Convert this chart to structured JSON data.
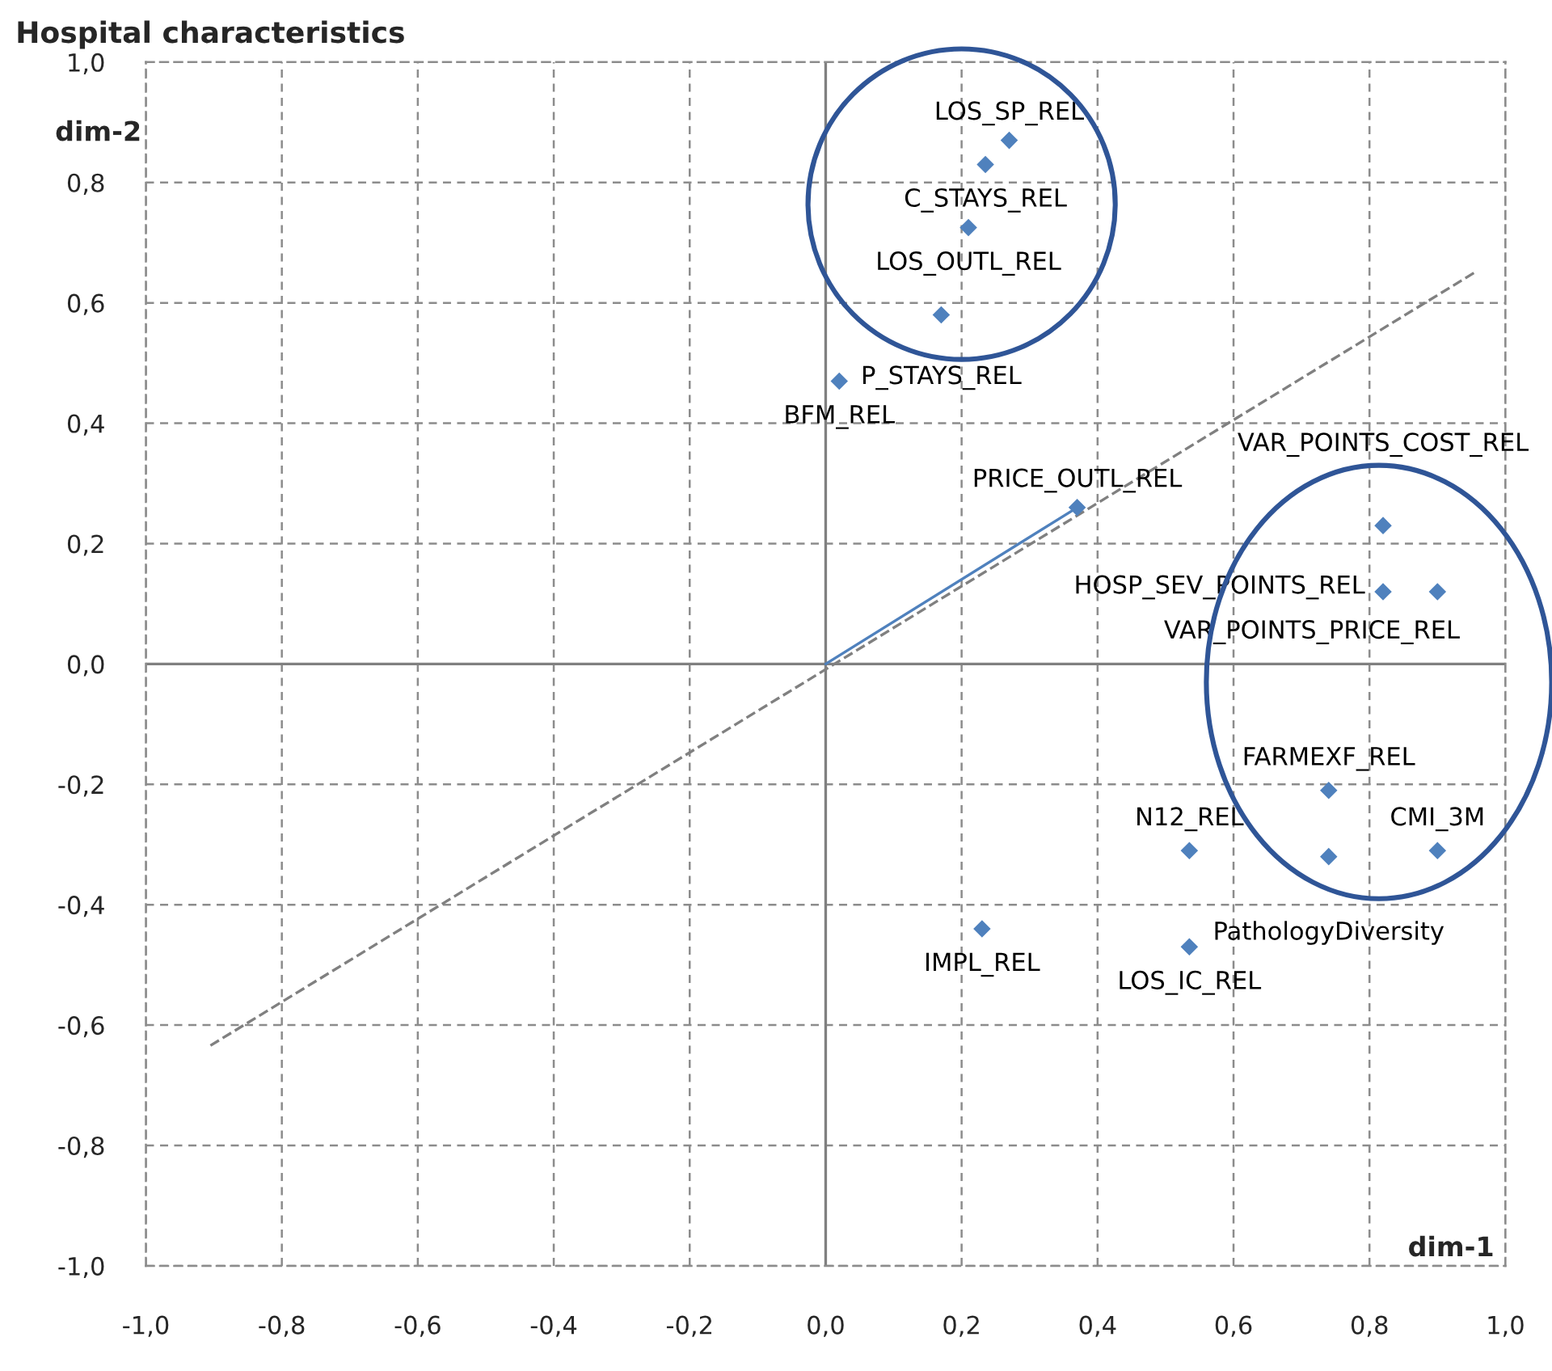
{
  "chart_data": {
    "type": "scatter",
    "title": "Hospital characteristics",
    "xlabel": "dim-1",
    "ylabel": "dim-2",
    "xlim": [
      -1,
      1
    ],
    "ylim": [
      -1,
      1
    ],
    "xticks": [
      {
        "value": -1,
        "label": "-1,0"
      },
      {
        "value": -0.8,
        "label": "-0,8"
      },
      {
        "value": -0.6,
        "label": "-0,6"
      },
      {
        "value": -0.4,
        "label": "-0,4"
      },
      {
        "value": -0.2,
        "label": "-0,2"
      },
      {
        "value": 0,
        "label": "0,0"
      },
      {
        "value": 0.2,
        "label": "0,2"
      },
      {
        "value": 0.4,
        "label": "0,4"
      },
      {
        "value": 0.6,
        "label": "0,6"
      },
      {
        "value": 0.8,
        "label": "0,8"
      },
      {
        "value": 1,
        "label": "1,0"
      }
    ],
    "yticks": [
      {
        "value": -1,
        "label": "-1,0"
      },
      {
        "value": -0.8,
        "label": "-0,8"
      },
      {
        "value": -0.6,
        "label": "-0,6"
      },
      {
        "value": -0.4,
        "label": "-0,4"
      },
      {
        "value": -0.2,
        "label": "-0,2"
      },
      {
        "value": 0,
        "label": "0,0"
      },
      {
        "value": 0.2,
        "label": "0,2"
      },
      {
        "value": 0.4,
        "label": "0,4"
      },
      {
        "value": 0.6,
        "label": "0,6"
      },
      {
        "value": 0.8,
        "label": "0,8"
      },
      {
        "value": 1,
        "label": "1,0"
      }
    ],
    "grid": true,
    "series": [
      {
        "marker": "diamond",
        "color": "#4f81bd",
        "x": [
          0.27,
          0.235,
          0.21,
          0.17,
          0.02,
          0.37,
          0.82,
          0.82,
          0.9,
          0.74,
          0.9,
          0.74,
          0.535,
          0.535,
          0.23
        ],
        "values": [
          0.87,
          0.83,
          0.725,
          0.58,
          0.47,
          0.26,
          0.23,
          0.12,
          0.12,
          -0.21,
          -0.31,
          -0.32,
          -0.31,
          -0.47,
          -0.44
        ]
      },
      {
        "type": "line",
        "color": "#808080",
        "line_style": "dashed",
        "x": [
          -0.905,
          0.954
        ],
        "values": [
          -0.634,
          0.65
        ]
      },
      {
        "type": "line",
        "color": "#4f81bd",
        "line_style": "solid",
        "x": [
          0,
          0.37
        ],
        "values": [
          0,
          0.26
        ]
      }
    ],
    "annotations": [
      {
        "text": "LOS_SP_REL",
        "x": 0.27,
        "y": 0.87
      },
      {
        "text": "C_STAYS_REL",
        "x": 0.235,
        "y": 0.83
      },
      {
        "text": "LOS_OUTL_REL",
        "x": 0.21,
        "y": 0.725
      },
      {
        "text": "P_STAYS_REL",
        "x": 0.17,
        "y": 0.58
      },
      {
        "text": "BFM_REL",
        "x": 0.02,
        "y": 0.47
      },
      {
        "text": "PRICE_OUTL_REL",
        "x": 0.37,
        "y": 0.26
      },
      {
        "text": "VAR_POINTS_COST_REL",
        "x": 0.82,
        "y": 0.23
      },
      {
        "text": "HOSP_SEV_POINTS_REL",
        "x": 0.82,
        "y": 0.12
      },
      {
        "text": "VAR_POINTS_PRICE_REL",
        "x": 0.9,
        "y": 0.12
      },
      {
        "text": "FARMEXF_REL",
        "x": 0.74,
        "y": -0.21
      },
      {
        "text": "CMI_3M",
        "x": 0.9,
        "y": -0.31
      },
      {
        "text": "PathologyDiversity",
        "x": 0.74,
        "y": -0.32
      },
      {
        "text": "N12_REL",
        "x": 0.535,
        "y": -0.31
      },
      {
        "text": "LOS_IC_REL",
        "x": 0.535,
        "y": -0.47
      },
      {
        "text": "IMPL_REL",
        "x": 0.23,
        "y": -0.44
      }
    ]
  }
}
